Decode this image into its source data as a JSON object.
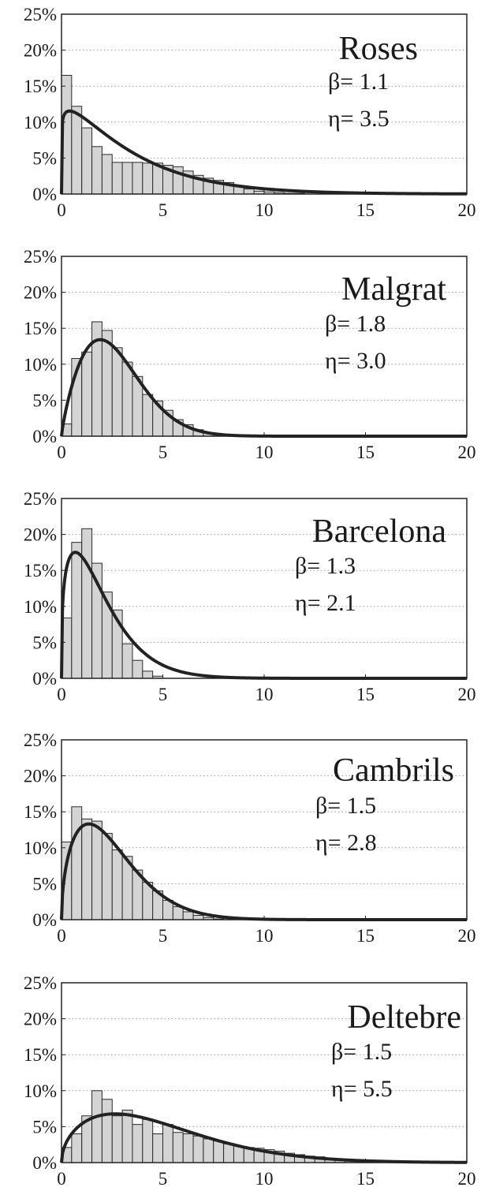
{
  "chart_data": [
    {
      "type": "bar",
      "title": "Roses",
      "annotations": [
        "β= 1.1",
        "η= 3.5"
      ],
      "xlim": [
        0,
        20
      ],
      "ylim": [
        0,
        25
      ],
      "x_ticks": [
        "0",
        "5",
        "10",
        "15",
        "20"
      ],
      "y_ticks": [
        "0%",
        "5%",
        "10%",
        "15%",
        "20%",
        "25%"
      ],
      "grid": true,
      "bin_width": 0.5,
      "series": [
        {
          "type": "bar",
          "x": [
            0.25,
            0.75,
            1.25,
            1.75,
            2.25,
            2.75,
            3.25,
            3.75,
            4.25,
            4.75,
            5.25,
            5.75,
            6.25,
            6.75,
            7.25,
            7.75,
            8.25,
            8.75,
            9.25,
            9.75,
            10.25,
            10.75,
            11.25,
            11.75
          ],
          "values": [
            16.5,
            12.2,
            9.2,
            6.6,
            5.5,
            4.4,
            4.4,
            4.4,
            4.3,
            4.3,
            4.0,
            3.8,
            3.2,
            2.6,
            2.2,
            1.9,
            1.6,
            1.2,
            0.7,
            0.4,
            0.3,
            0.2,
            0.1,
            0.1
          ]
        },
        {
          "type": "line",
          "weibull_beta": 1.1,
          "weibull_eta": 3.5
        }
      ]
    },
    {
      "type": "bar",
      "title": "Malgrat",
      "annotations": [
        "β= 1.8",
        "η= 3.0"
      ],
      "xlim": [
        0,
        20
      ],
      "ylim": [
        0,
        25
      ],
      "x_ticks": [
        "0",
        "5",
        "10",
        "15",
        "20"
      ],
      "y_ticks": [
        "0%",
        "5%",
        "10%",
        "15%",
        "20%",
        "25%"
      ],
      "grid": true,
      "bin_width": 0.5,
      "series": [
        {
          "type": "bar",
          "x": [
            0.25,
            0.75,
            1.25,
            1.75,
            2.25,
            2.75,
            3.25,
            3.75,
            4.25,
            4.75,
            5.25,
            5.75,
            6.25,
            6.75,
            7.25,
            7.75
          ],
          "values": [
            1.7,
            10.8,
            11.7,
            15.9,
            14.7,
            12.3,
            10.3,
            8.3,
            5.8,
            4.9,
            3.6,
            2.3,
            1.6,
            0.9,
            0.5,
            0.2
          ]
        },
        {
          "type": "line",
          "weibull_beta": 1.8,
          "weibull_eta": 3.0
        }
      ]
    },
    {
      "type": "bar",
      "title": "Barcelona",
      "annotations": [
        "β= 1.3",
        "η= 2.1"
      ],
      "xlim": [
        0,
        20
      ],
      "ylim": [
        0,
        25
      ],
      "x_ticks": [
        "0",
        "5",
        "10",
        "15",
        "20"
      ],
      "y_ticks": [
        "0%",
        "5%",
        "10%",
        "15%",
        "20%",
        "25%"
      ],
      "grid": true,
      "bin_width": 0.5,
      "series": [
        {
          "type": "bar",
          "x": [
            0.25,
            0.75,
            1.25,
            1.75,
            2.25,
            2.75,
            3.25,
            3.75,
            4.25,
            4.75
          ],
          "values": [
            8.4,
            18.9,
            20.8,
            16.0,
            12.0,
            9.5,
            4.8,
            2.5,
            1.0,
            0.3
          ]
        },
        {
          "type": "line",
          "weibull_beta": 1.3,
          "weibull_eta": 2.1
        }
      ]
    },
    {
      "type": "bar",
      "title": "Cambrils",
      "annotations": [
        "β= 1.5",
        "η= 2.8"
      ],
      "xlim": [
        0,
        20
      ],
      "ylim": [
        0,
        25
      ],
      "x_ticks": [
        "0",
        "5",
        "10",
        "15",
        "20"
      ],
      "y_ticks": [
        "0%",
        "5%",
        "10%",
        "15%",
        "20%",
        "25%"
      ],
      "grid": true,
      "bin_width": 0.5,
      "series": [
        {
          "type": "bar",
          "x": [
            0.25,
            0.75,
            1.25,
            1.75,
            2.25,
            2.75,
            3.25,
            3.75,
            4.25,
            4.75,
            5.25,
            5.75,
            6.25,
            6.75,
            7.25,
            7.75
          ],
          "values": [
            10.8,
            15.7,
            14.0,
            13.7,
            12.0,
            9.7,
            8.8,
            6.9,
            5.2,
            4.0,
            2.7,
            1.8,
            1.1,
            0.6,
            0.3,
            0.1
          ]
        },
        {
          "type": "line",
          "weibull_beta": 1.5,
          "weibull_eta": 2.8
        }
      ]
    },
    {
      "type": "bar",
      "title": "Deltebre",
      "annotations": [
        "β= 1.5",
        "η= 5.5"
      ],
      "xlim": [
        0,
        20
      ],
      "ylim": [
        0,
        25
      ],
      "x_ticks": [
        "0",
        "5",
        "10",
        "15",
        "20"
      ],
      "y_ticks": [
        "0%",
        "5%",
        "10%",
        "15%",
        "20%",
        "25%"
      ],
      "grid": true,
      "bin_width": 0.5,
      "series": [
        {
          "type": "bar",
          "x": [
            0.25,
            0.75,
            1.25,
            1.75,
            2.25,
            2.75,
            3.25,
            3.75,
            4.25,
            4.75,
            5.25,
            5.75,
            6.25,
            6.75,
            7.25,
            7.75,
            8.25,
            8.75,
            9.25,
            9.75,
            10.25,
            10.75,
            11.25,
            11.75,
            12.25,
            12.75,
            13.25,
            13.75,
            14.25,
            14.75,
            15.25,
            15.75
          ],
          "values": [
            2.1,
            4.0,
            6.5,
            10.0,
            8.8,
            6.5,
            7.3,
            5.3,
            6.0,
            4.0,
            5.3,
            4.2,
            4.0,
            3.7,
            3.3,
            3.0,
            2.6,
            2.3,
            2.1,
            2.0,
            1.8,
            1.6,
            1.3,
            1.1,
            0.9,
            0.8,
            0.6,
            0.5,
            0.4,
            0.3,
            0.2,
            0.1
          ]
        },
        {
          "type": "line",
          "weibull_beta": 1.5,
          "weibull_eta": 5.5
        }
      ]
    }
  ]
}
